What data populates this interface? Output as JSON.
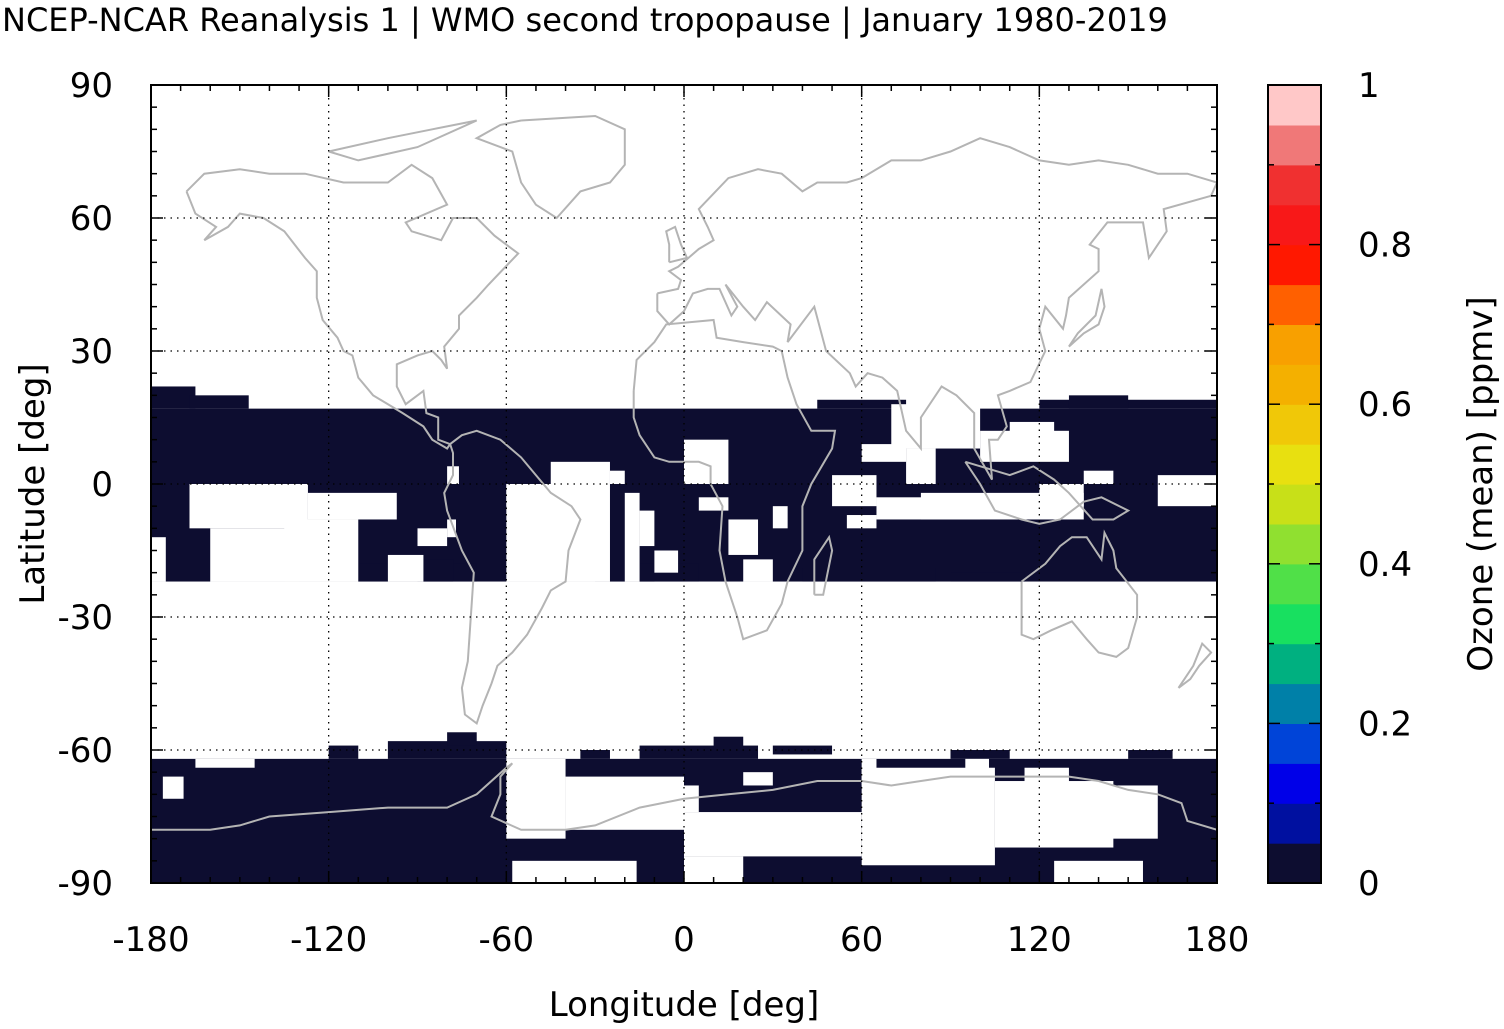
{
  "title": "NCEP-NCAR Reanalysis 1 | WMO second tropopause | January 1980-2019",
  "map": {
    "xlabel": "Longitude [deg]",
    "ylabel": "Latitude [deg]",
    "x_ticks": [
      "-180",
      "-120",
      "-60",
      "0",
      "60",
      "120",
      "180"
    ],
    "y_ticks": [
      "90",
      "60",
      "30",
      "0",
      "-30",
      "-60",
      "-90"
    ],
    "xlim": [
      -180,
      180
    ],
    "ylim": [
      -90,
      90
    ],
    "grid": true,
    "coastline_color": "#b4b4b4",
    "field_color": "#0d0d30",
    "filled_regions": [
      {
        "lon": [
          -180,
          180
        ],
        "lat": [
          -22,
          17
        ]
      },
      {
        "lon": [
          -180,
          180
        ],
        "lat": [
          -90,
          -62
        ]
      }
    ]
  },
  "colorbar": {
    "label": "Ozone (mean) [ppmv]",
    "ticks": [
      "1",
      "0.8",
      "0.6",
      "0.4",
      "0.2",
      "0"
    ],
    "range": [
      0,
      1
    ],
    "colors": [
      "#0d0d30",
      "#0010a0",
      "#0000e8",
      "#0044d8",
      "#0080a8",
      "#00b080",
      "#18e060",
      "#50e048",
      "#90e030",
      "#c8e018",
      "#e8e010",
      "#f0c808",
      "#f4b000",
      "#f8a000",
      "#ff6000",
      "#ff1800",
      "#f81818",
      "#f03030",
      "#f07878",
      "#ffc8c8"
    ]
  }
}
